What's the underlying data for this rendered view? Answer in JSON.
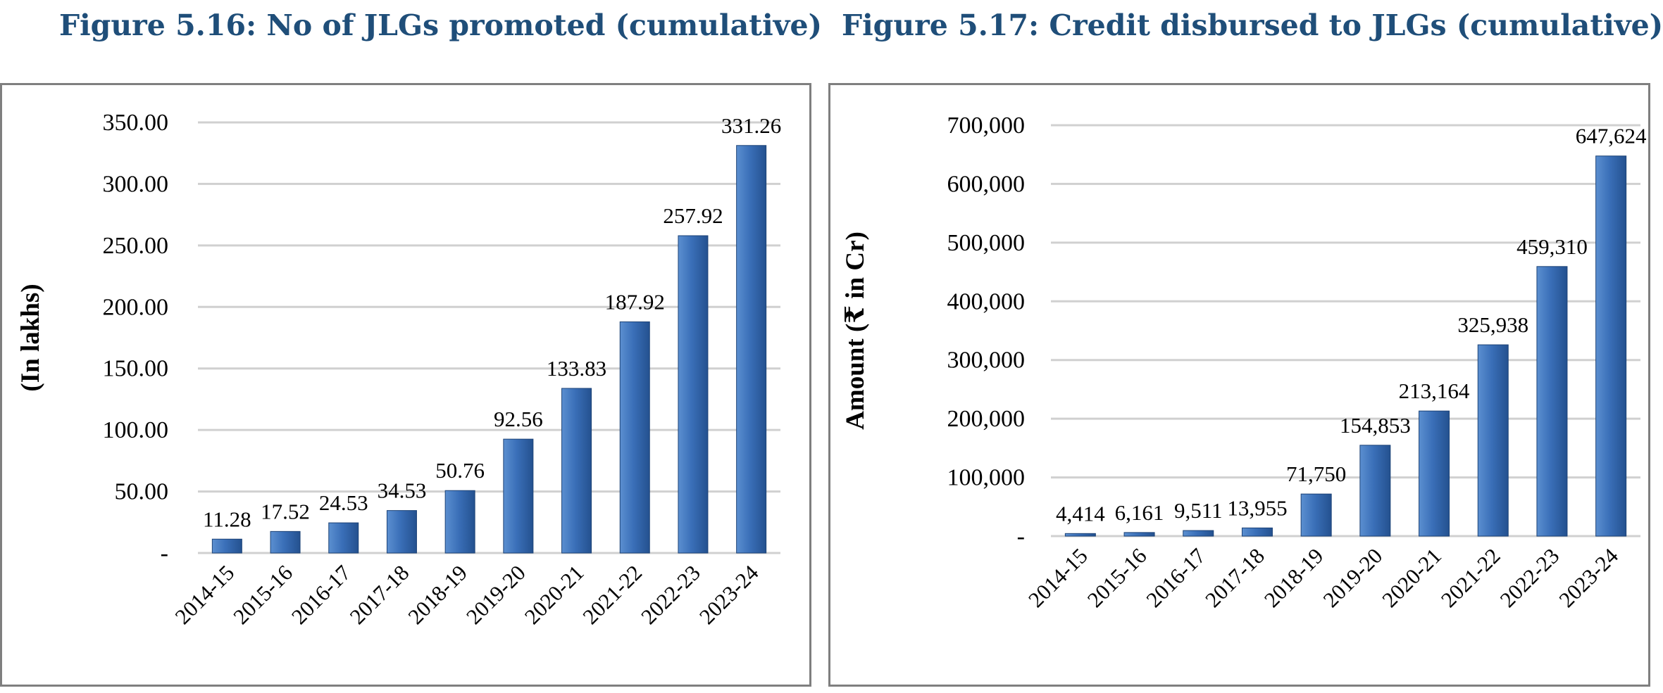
{
  "figures": [
    {
      "title": "Figure 5.16: No of JLGs promoted (cumulative)"
    },
    {
      "title": "Figure 5.17: Credit disbursed to JLGs (cumulative)"
    }
  ],
  "colors": {
    "title": "#1f4e79",
    "bar_light": "#5b8fd0",
    "bar_mid": "#3a6fb8",
    "bar_dark": "#24518f",
    "grid": "#d0d0d0",
    "border": "#7f7f7f"
  },
  "chart_data": [
    {
      "type": "bar",
      "title": "Figure 5.16: No of JLGs promoted (cumulative)",
      "ylabel": "(In lakhs)",
      "xlabel": "",
      "categories": [
        "2014-15",
        "2015-16",
        "2016-17",
        "2017-18",
        "2018-19",
        "2019-20",
        "2020-21",
        "2021-22",
        "2022-23",
        "2023-24"
      ],
      "values": [
        11.28,
        17.52,
        24.53,
        34.53,
        50.76,
        92.56,
        133.83,
        187.92,
        257.92,
        331.26
      ],
      "value_labels": [
        "11.28",
        "17.52",
        "24.53",
        "34.53",
        "50.76",
        "92.56",
        "133.83",
        "187.92",
        "257.92",
        "331.26"
      ],
      "ylim": [
        0,
        350
      ],
      "yticks": [
        0,
        50,
        100,
        150,
        200,
        250,
        300,
        350
      ],
      "ytick_labels": [
        "-",
        "50.00",
        "100.00",
        "150.00",
        "200.00",
        "250.00",
        "300.00",
        "350.00"
      ],
      "grid": true,
      "legend": "none"
    },
    {
      "type": "bar",
      "title": "Figure 5.17: Credit disbursed to JLGs (cumulative)",
      "ylabel": "Amount (₹ in Cr)",
      "xlabel": "",
      "categories": [
        "2014-15",
        "2015-16",
        "2016-17",
        "2017-18",
        "2018-19",
        "2019-20",
        "2020-21",
        "2021-22",
        "2022-23",
        "2023-24"
      ],
      "values": [
        4414,
        6161,
        9511,
        13955,
        71750,
        154853,
        213164,
        325938,
        459310,
        647624
      ],
      "value_labels": [
        "4,414",
        "6,161",
        "9,511",
        "13,955",
        "71,750",
        "154,853",
        "213,164",
        "325,938",
        "459,310",
        "647,624"
      ],
      "ylim": [
        0,
        700000
      ],
      "yticks": [
        0,
        100000,
        200000,
        300000,
        400000,
        500000,
        600000,
        700000
      ],
      "ytick_labels": [
        "-",
        "100,000",
        "200,000",
        "300,000",
        "400,000",
        "500,000",
        "600,000",
        "700,000"
      ],
      "grid": true,
      "legend": "none"
    }
  ]
}
